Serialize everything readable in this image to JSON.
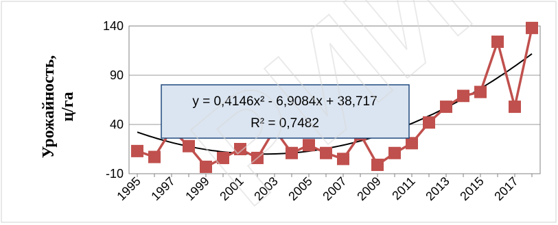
{
  "chart_data": {
    "type": "line",
    "ylabel_lines": [
      "Урожайность,",
      "ц/га"
    ],
    "ylim": [
      -10,
      140
    ],
    "yticks": [
      "-10",
      "40",
      "90",
      "140"
    ],
    "x": [
      1995,
      1996,
      1997,
      1998,
      1999,
      2000,
      2001,
      2002,
      2003,
      2004,
      2005,
      2006,
      2007,
      2008,
      2009,
      2010,
      2011,
      2012,
      2013,
      2014,
      2015,
      2016,
      2017,
      2018
    ],
    "xticks": [
      "1995",
      "1997",
      "1999",
      "2001",
      "2003",
      "2005",
      "2007",
      "2009",
      "2011",
      "2013",
      "2015",
      "2017"
    ],
    "series": [
      {
        "values": [
          13,
          7,
          35,
          18,
          -3,
          6,
          15,
          6,
          35,
          11,
          19,
          11,
          5,
          30,
          -1,
          11,
          21,
          42,
          58,
          69,
          73,
          124,
          58,
          138
        ],
        "color": "#c0504d",
        "marker": "square"
      }
    ],
    "trendline": {
      "type": "polynomial",
      "coefficients": [
        0.4146,
        -6.9084,
        38.717
      ],
      "color": "#000000",
      "equation": "y = 0,4146x² - 6,9084x + 38,717",
      "r2": "R² = 0,7482"
    },
    "grid": true,
    "legend": "none"
  },
  "watermark": "РИЙ Г"
}
